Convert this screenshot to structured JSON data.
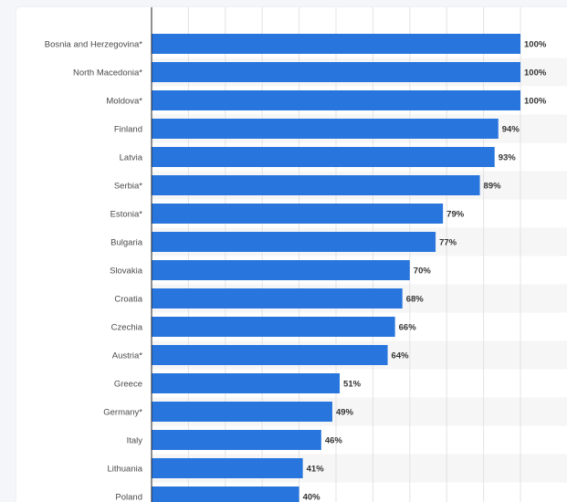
{
  "colors": {
    "bar": "#2876dd",
    "band": "#f6f6f6",
    "grid": "#e3e3e3",
    "axis": "#222222"
  },
  "chart_data": {
    "type": "bar",
    "orientation": "horizontal",
    "title": "",
    "xlabel": "",
    "ylabel": "",
    "xlim": [
      0,
      100
    ],
    "value_suffix": "%",
    "grid": true,
    "legend": "none",
    "categories": [
      "Bosnia and Herzegovina*",
      "North Macedonia*",
      "Moldova*",
      "Finland",
      "Latvia",
      "Serbia*",
      "Estonia*",
      "Bulgaria",
      "Slovakia",
      "Croatia",
      "Czechia",
      "Austria*",
      "Greece",
      "Germany*",
      "Italy",
      "Lithuania",
      "Poland"
    ],
    "values": [
      100,
      100,
      100,
      94,
      93,
      89,
      79,
      77,
      70,
      68,
      66,
      64,
      51,
      49,
      46,
      41,
      40
    ],
    "data_labels": [
      "100%",
      "100%",
      "100%",
      "94%",
      "93%",
      "89%",
      "79%",
      "77%",
      "70%",
      "68%",
      "66%",
      "64%",
      "51%",
      "49%",
      "46%",
      "41%",
      "40%"
    ]
  }
}
